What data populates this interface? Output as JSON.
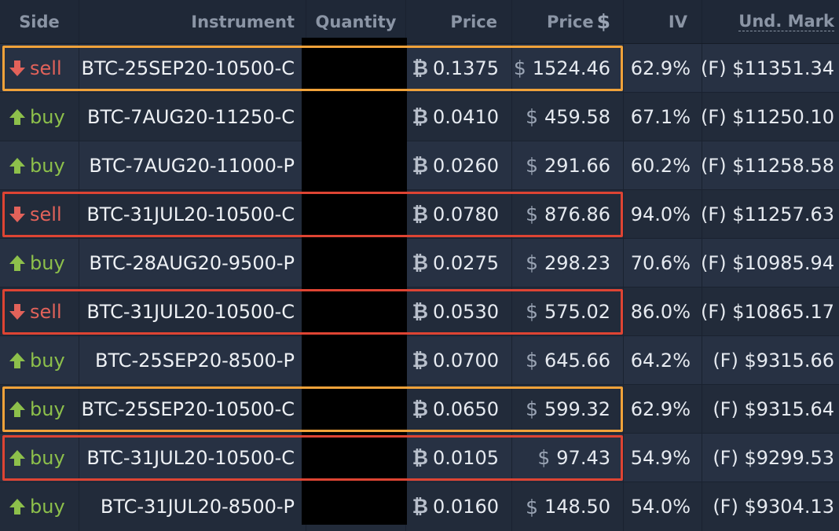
{
  "headers": {
    "side": "Side",
    "instrument": "Instrument",
    "quantity": "Quantity",
    "price": "Price",
    "price_usd": "Price",
    "price_usd_sign": "$",
    "iv": "IV",
    "und_mark": "Und. Mark"
  },
  "symbols": {
    "btc": "₿",
    "usd": "$"
  },
  "colors": {
    "sell": "#e2625a",
    "buy": "#8dc04b",
    "highlight_orange": "#f0a23a",
    "highlight_red": "#de4433",
    "background": "#263041"
  },
  "rows": [
    {
      "side": "sell",
      "instrument": "BTC-25SEP20-10500-C",
      "price_btc": "0.1375",
      "price_usd": "1524.46",
      "iv": "62.9%",
      "und_mark": "(F) $11351.34",
      "highlight": "orange"
    },
    {
      "side": "buy",
      "instrument": "BTC-7AUG20-11250-C",
      "price_btc": "0.0410",
      "price_usd": "459.58",
      "iv": "67.1%",
      "und_mark": "(F) $11250.10",
      "highlight": ""
    },
    {
      "side": "buy",
      "instrument": "BTC-7AUG20-11000-P",
      "price_btc": "0.0260",
      "price_usd": "291.66",
      "iv": "60.2%",
      "und_mark": "(F) $11258.58",
      "highlight": ""
    },
    {
      "side": "sell",
      "instrument": "BTC-31JUL20-10500-C",
      "price_btc": "0.0780",
      "price_usd": "876.86",
      "iv": "94.0%",
      "und_mark": "(F) $11257.63",
      "highlight": "red"
    },
    {
      "side": "buy",
      "instrument": "BTC-28AUG20-9500-P",
      "price_btc": "0.0275",
      "price_usd": "298.23",
      "iv": "70.6%",
      "und_mark": "(F) $10985.94",
      "highlight": ""
    },
    {
      "side": "sell",
      "instrument": "BTC-31JUL20-10500-C",
      "price_btc": "0.0530",
      "price_usd": "575.02",
      "iv": "86.0%",
      "und_mark": "(F) $10865.17",
      "highlight": "red"
    },
    {
      "side": "buy",
      "instrument": "BTC-25SEP20-8500-P",
      "price_btc": "0.0700",
      "price_usd": "645.66",
      "iv": "64.2%",
      "und_mark": "(F) $9315.66",
      "highlight": ""
    },
    {
      "side": "buy",
      "instrument": "BTC-25SEP20-10500-C",
      "price_btc": "0.0650",
      "price_usd": "599.32",
      "iv": "62.9%",
      "und_mark": "(F) $9315.64",
      "highlight": "orange"
    },
    {
      "side": "buy",
      "instrument": "BTC-31JUL20-10500-C",
      "price_btc": "0.0105",
      "price_usd": "97.43",
      "iv": "54.9%",
      "und_mark": "(F) $9299.53",
      "highlight": "red"
    },
    {
      "side": "buy",
      "instrument": "BTC-31JUL20-8500-P",
      "price_btc": "0.0160",
      "price_usd": "148.50",
      "iv": "54.0%",
      "und_mark": "(F) $9304.13",
      "highlight": ""
    }
  ]
}
